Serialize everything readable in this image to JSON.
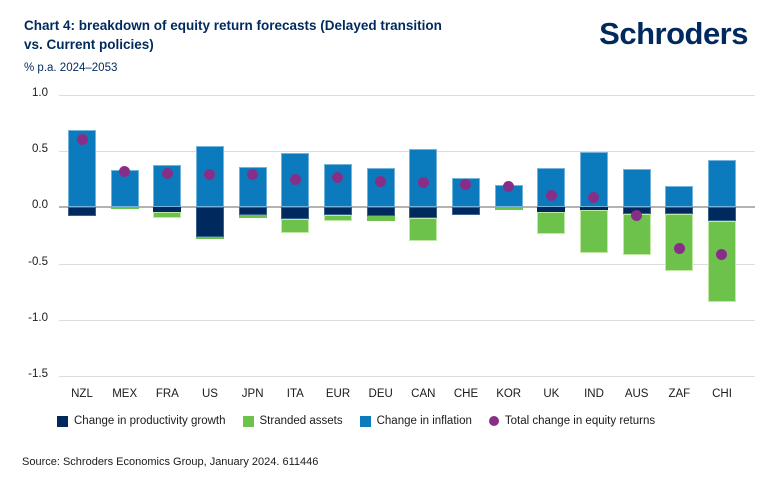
{
  "header": {
    "title_line1": "Chart 4: breakdown of equity return forecasts (Delayed transition",
    "title_line2": "vs. Current policies)",
    "logo_text": "Schroders",
    "unit_label": "% p.a. 2024–2053"
  },
  "chart_data": {
    "type": "bar",
    "stacked": true,
    "title": "Chart 4: breakdown of equity return forecasts (Delayed transition vs. Current policies)",
    "ylabel": "% p.a. 2024–2053",
    "ylim": [
      -1.5,
      1.0
    ],
    "yticks": [
      1.0,
      0.5,
      0.0,
      -0.5,
      -1.0,
      -1.5
    ],
    "grid": true,
    "legend_position": "bottom",
    "categories": [
      "NZL",
      "MEX",
      "FRA",
      "US",
      "JPN",
      "ITA",
      "EUR",
      "DEU",
      "CAN",
      "CHE",
      "KOR",
      "UK",
      "IND",
      "AUS",
      "ZAF",
      "CHI"
    ],
    "series": [
      {
        "name": "Change in productivity growth",
        "color": "#002a5e",
        "values": [
          -0.08,
          0.0,
          -0.04,
          -0.26,
          -0.07,
          -0.1,
          -0.07,
          -0.08,
          -0.09,
          -0.07,
          0.0,
          -0.04,
          -0.02,
          -0.06,
          -0.06,
          -0.12
        ]
      },
      {
        "name": "Stranded assets",
        "color": "#6cc24a",
        "values": [
          0.0,
          -0.01,
          -0.05,
          -0.02,
          -0.02,
          -0.13,
          -0.05,
          -0.04,
          -0.21,
          0.0,
          -0.02,
          -0.2,
          -0.39,
          -0.36,
          -0.51,
          -0.72
        ]
      },
      {
        "name": "Change in inflation",
        "color": "#0c7bbe",
        "values": [
          0.69,
          0.33,
          0.38,
          0.55,
          0.36,
          0.48,
          0.39,
          0.35,
          0.52,
          0.26,
          0.2,
          0.35,
          0.49,
          0.34,
          0.19,
          0.42
        ]
      }
    ],
    "dot_series": {
      "name": "Total change in equity returns",
      "color": "#872f88",
      "values": [
        0.6,
        0.32,
        0.3,
        0.29,
        0.29,
        0.25,
        0.27,
        0.23,
        0.22,
        0.2,
        0.19,
        0.11,
        0.09,
        -0.07,
        -0.37,
        -0.42
      ]
    }
  },
  "legend": {
    "items": [
      {
        "label": "Change in productivity growth",
        "color": "#002a5e",
        "shape": "square"
      },
      {
        "label": "Stranded assets",
        "color": "#6cc24a",
        "shape": "square"
      },
      {
        "label": "Change in inflation",
        "color": "#0c7bbe",
        "shape": "square"
      },
      {
        "label": "Total change in equity returns",
        "color": "#872f88",
        "shape": "circle"
      }
    ]
  },
  "footer": {
    "source_text": "Source: Schroders Economics Group, January 2024. 611446"
  },
  "colors": {
    "brand_navy": "#002a5e",
    "grid": "#dcdcdc",
    "zero_line": "#b3b3b3",
    "text": "#1a1a1a"
  }
}
